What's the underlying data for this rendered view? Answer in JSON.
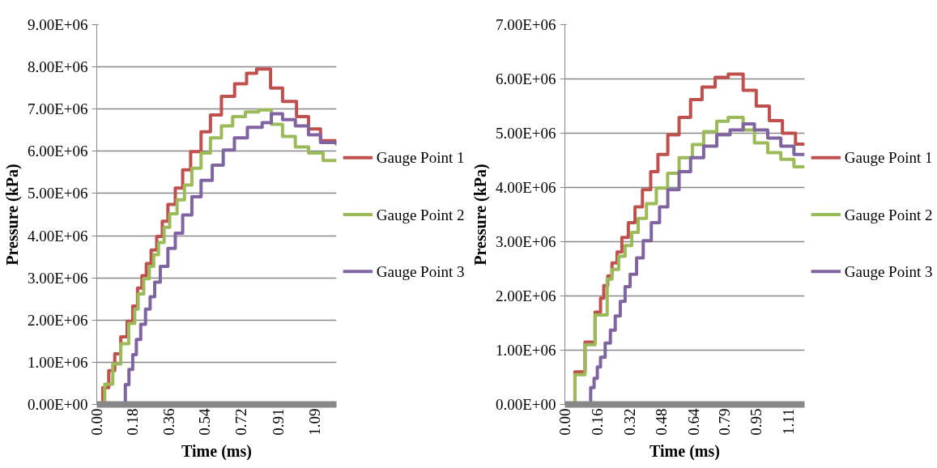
{
  "chart_data": [
    {
      "type": "step",
      "xlabel": "Time (ms)",
      "ylabel": "Pressure (kPa)",
      "grid": "y",
      "legend": "right",
      "xlim": [
        0,
        1.2
      ],
      "xticks": [
        {
          "value": 0,
          "label": "0.00"
        },
        0.18,
        0.36,
        0.54,
        0.72,
        0.91,
        1.09
      ],
      "ylim": [
        0,
        9000000
      ],
      "yticks": [
        {
          "value": 0,
          "label": "0.00E+00"
        },
        {
          "value": 1000000,
          "label": "1.00E+06"
        },
        {
          "value": 2000000,
          "label": "2.00E+06"
        },
        {
          "value": 3000000,
          "label": "3.00E+06"
        },
        {
          "value": 4000000,
          "label": "4.00E+06"
        },
        {
          "value": 5000000,
          "label": "5.00E+06"
        },
        {
          "value": 6000000,
          "label": "6.00E+06"
        },
        {
          "value": 7000000,
          "label": "7.00E+06"
        },
        {
          "value": 8000000,
          "label": "8.00E+06"
        },
        {
          "value": 9000000,
          "label": "9.00E+06"
        }
      ],
      "series": [
        {
          "name": "Gauge Point 1",
          "color": "#c0504d",
          "x": [
            0,
            0.03,
            0.06,
            0.09,
            0.12,
            0.152,
            0.18,
            0.204,
            0.226,
            0.248,
            0.272,
            0.3,
            0.328,
            0.356,
            0.393,
            0.43,
            0.47,
            0.522,
            0.569,
            0.624,
            0.69,
            0.75,
            0.8,
            0.87,
            0.93,
            1.0,
            1.06,
            1.12,
            1.2
          ],
          "values": [
            0,
            400000,
            800000,
            1200000,
            1600000,
            1970000,
            2330000,
            2760000,
            3050000,
            3340000,
            3660000,
            3980000,
            4340000,
            4740000,
            5130000,
            5560000,
            5990000,
            6460000,
            6860000,
            7300000,
            7600000,
            7850000,
            7950000,
            7500000,
            7180000,
            6820000,
            6530000,
            6250000,
            6250000
          ]
        },
        {
          "name": "Gauge Point 2",
          "color": "#9bbb59",
          "x": [
            0,
            0.04,
            0.08,
            0.12,
            0.16,
            0.19,
            0.207,
            0.235,
            0.263,
            0.285,
            0.309,
            0.337,
            0.365,
            0.402,
            0.439,
            0.476,
            0.522,
            0.569,
            0.624,
            0.68,
            0.744,
            0.81,
            0.874,
            0.93,
            0.994,
            1.06,
            1.133,
            1.2
          ],
          "values": [
            0,
            480000,
            960000,
            1440000,
            1920000,
            2260000,
            2620000,
            2980000,
            3270000,
            3550000,
            3840000,
            4200000,
            4520000,
            4850000,
            5200000,
            5600000,
            5960000,
            6320000,
            6600000,
            6820000,
            6930000,
            6980000,
            6640000,
            6350000,
            6100000,
            5960000,
            5780000,
            5780000
          ]
        },
        {
          "name": "Gauge Point 3",
          "color": "#8064a2",
          "x": [
            0,
            0.124,
            0.143,
            0.161,
            0.18,
            0.198,
            0.22,
            0.244,
            0.267,
            0.29,
            0.318,
            0.356,
            0.393,
            0.43,
            0.476,
            0.522,
            0.578,
            0.633,
            0.689,
            0.754,
            0.828,
            0.874,
            0.93,
            0.994,
            1.06,
            1.12,
            1.2
          ],
          "values": [
            0,
            0,
            470000,
            830000,
            1180000,
            1540000,
            1900000,
            2260000,
            2550000,
            2900000,
            3270000,
            3700000,
            4060000,
            4490000,
            4920000,
            5310000,
            5670000,
            6030000,
            6320000,
            6570000,
            6680000,
            6890000,
            6750000,
            6600000,
            6390000,
            6210000,
            6140000
          ]
        }
      ]
    },
    {
      "type": "step",
      "xlabel": "Time (ms)",
      "ylabel": "Pressure (kPa)",
      "grid": "y",
      "legend": "right",
      "xlim": [
        0,
        1.19
      ],
      "xticks": [
        {
          "value": 0,
          "label": "0.00"
        },
        0.16,
        0.32,
        0.48,
        0.64,
        0.79,
        0.95,
        1.11
      ],
      "ylim": [
        0,
        7000000
      ],
      "yticks": [
        {
          "value": 0,
          "label": "0.00E+00"
        },
        {
          "value": 1000000,
          "label": "1.00E+06"
        },
        {
          "value": 2000000,
          "label": "2.00E+06"
        },
        {
          "value": 3000000,
          "label": "3.00E+06"
        },
        {
          "value": 4000000,
          "label": "4.00E+06"
        },
        {
          "value": 5000000,
          "label": "5.00E+06"
        },
        {
          "value": 6000000,
          "label": "6.00E+06"
        },
        {
          "value": 7000000,
          "label": "7.00E+06"
        }
      ],
      "series": [
        {
          "name": "Gauge Point 1",
          "color": "#c0504d",
          "x": [
            0,
            0.05,
            0.1,
            0.15,
            0.177,
            0.193,
            0.213,
            0.234,
            0.259,
            0.283,
            0.315,
            0.348,
            0.385,
            0.426,
            0.462,
            0.511,
            0.567,
            0.624,
            0.681,
            0.746,
            0.811,
            0.885,
            0.95,
            1.015,
            1.08,
            1.145,
            1.19
          ],
          "values": [
            0,
            600000,
            1150000,
            1700000,
            1960000,
            2190000,
            2370000,
            2610000,
            2810000,
            3080000,
            3350000,
            3640000,
            3960000,
            4290000,
            4610000,
            4970000,
            5290000,
            5620000,
            5850000,
            6030000,
            6090000,
            5790000,
            5500000,
            5230000,
            5000000,
            4800000,
            4800000
          ]
        },
        {
          "name": "Gauge Point 2",
          "color": "#9bbb59",
          "x": [
            0,
            0.05,
            0.1,
            0.15,
            0.21,
            0.234,
            0.267,
            0.299,
            0.332,
            0.364,
            0.405,
            0.454,
            0.51,
            0.567,
            0.633,
            0.689,
            0.754,
            0.811,
            0.885,
            0.941,
            1.007,
            1.072,
            1.137,
            1.19
          ],
          "values": [
            0,
            550000,
            1100000,
            1650000,
            2310000,
            2490000,
            2730000,
            2930000,
            3170000,
            3430000,
            3700000,
            3990000,
            4260000,
            4550000,
            4790000,
            5030000,
            5220000,
            5290000,
            5060000,
            4820000,
            4640000,
            4520000,
            4380000,
            4380000
          ]
        },
        {
          "name": "Gauge Point 3",
          "color": "#8064a2",
          "x": [
            0,
            0.112,
            0.128,
            0.145,
            0.161,
            0.177,
            0.2,
            0.226,
            0.25,
            0.275,
            0.299,
            0.324,
            0.356,
            0.389,
            0.429,
            0.47,
            0.511,
            0.567,
            0.624,
            0.689,
            0.754,
            0.82,
            0.885,
            0.941,
            1.007,
            1.072,
            1.137,
            1.19
          ],
          "values": [
            0,
            0,
            310000,
            480000,
            690000,
            870000,
            1130000,
            1370000,
            1630000,
            1900000,
            2170000,
            2400000,
            2700000,
            3020000,
            3350000,
            3640000,
            3960000,
            4290000,
            4550000,
            4760000,
            4970000,
            5060000,
            5170000,
            5060000,
            4910000,
            4760000,
            4610000,
            4610000
          ]
        }
      ]
    }
  ]
}
